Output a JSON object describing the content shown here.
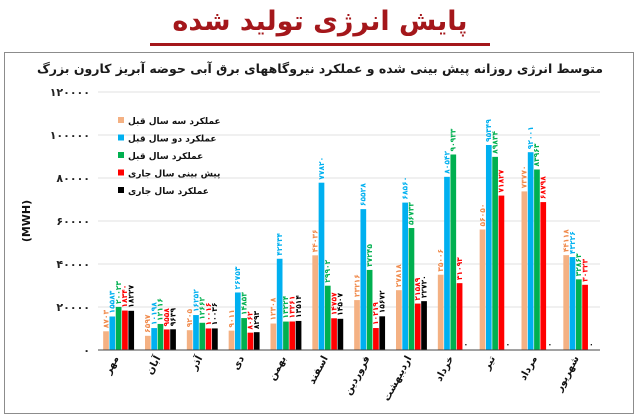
{
  "header": {
    "title": "پایش انرژی تولید شده"
  },
  "chart_data": {
    "type": "bar",
    "title": "متوسط انرژی روزانه پیش بینی شده و عملکرد نیروگاههای برق آبی حوضه آبریز کارون بزرگ",
    "ylabel": "(MWH)",
    "xlabel": "",
    "ylim": [
      0,
      120000
    ],
    "yticks": [
      0,
      20000,
      40000,
      60000,
      80000,
      100000,
      120000
    ],
    "ytick_labels": [
      "۰",
      "۲۰۰۰۰",
      "۴۰۰۰۰",
      "۶۰۰۰۰",
      "۸۰۰۰۰",
      "۱۰۰۰۰۰",
      "۱۲۰۰۰۰"
    ],
    "grid": true,
    "legend_position": "top-left",
    "categories": [
      "مهر",
      "آبان",
      "آذر",
      "دی",
      "بهمن",
      "اسفند",
      "فروردین",
      "اردیبهشت",
      "خرداد",
      "تیر",
      "مرداد",
      "شهریور"
    ],
    "series": [
      {
        "name": "عملکرد سه سال قبل",
        "color": "#f4b183",
        "values": [
          8703,
          6597,
          9205,
          9011,
          12308,
          44036,
          23216,
          27818,
          35006,
          56050,
          73770,
          44118
        ],
        "labels": [
          "۸۷۰۳",
          "۶۵۹۷",
          "۹۲۰۵",
          "۹۰۱۱",
          "۱۲۳۰۸",
          "۴۴۰۳۶",
          "۲۳۲۱۶",
          "۲۷۸۱۸",
          "۳۵۰۰۶",
          "۵۶۰۵۰",
          "۷۳۷۷۰",
          "۴۴۱۱۸"
        ]
      },
      {
        "name": "عملکرد دو سال قبل",
        "color": "#00b0f0",
        "values": [
          15583,
          10198,
          16252,
          26753,
          42434,
          77820,
          65528,
          68560,
          80542,
          95349,
          92001,
          43226
        ],
        "labels": [
          "۱۵۵۸۳",
          "۱۰۱۹۸",
          "۱۶۲۵۲",
          "۲۶۷۵۳",
          "۴۲۴۳۴",
          "۷۷۸۲۰",
          "۶۵۵۲۸",
          "۶۸۵۶۰",
          "۸۰۵۴۲",
          "۹۵۳۴۹",
          "۹۲۰۰۱",
          "۴۳۲۲۶"
        ]
      },
      {
        "name": "عملکرد سال قبل",
        "color": "#00b050",
        "values": [
          20023,
          12116,
          12662,
          14853,
          13224,
          29902,
          37245,
          56733,
          90933,
          89834,
          83963,
          32863
        ],
        "labels": [
          "۲۰۰۲۳",
          "۱۲۱۱۶",
          "۱۲۶۶۲",
          "۱۴۸۵۳",
          "۱۳۲۲۴",
          "۲۹۹۰۲",
          "۳۷۲۴۵",
          "۵۶۷۳۳",
          "۹۰۹۳۳",
          "۸۹۸۳۴",
          "۸۳۹۶۳",
          "۳۲۸۶۳"
        ]
      },
      {
        "name": "پیش بینی سال جاری",
        "color": "#ff0000",
        "values": [
          18340,
          9558,
          10016,
          8062,
          13261,
          14757,
          10219,
          21589,
          31093,
          71827,
          68798,
          30323
        ],
        "labels": [
          "۱۸۳۴۰",
          "۹۵۵۸",
          "۱۰۰۱۶",
          "۸۰۶۲",
          "۱۳۲۶۱",
          "۱۴۷۵۷",
          "۱۰۲۱۹",
          "۲۱۵۸۹",
          "۳۱۰۹۳",
          "۷۱۸۲۷",
          "۶۸۷۹۸",
          "۳۰۳۲۳"
        ]
      },
      {
        "name": "عملکرد سال جاری",
        "color": "#000000",
        "values": [
          18227,
          9639,
          10036,
          8293,
          13514,
          14507,
          15672,
          22720,
          0,
          0,
          0,
          0
        ],
        "labels": [
          "۱۸۲۲۷",
          "۹۶۳۹",
          "۱۰۰۳۶",
          "۸۲۹۳",
          "۱۳۵۱۴",
          "۱۴۵۰۷",
          "۱۵۶۷۲",
          "۲۲۷۲۰",
          "۰",
          "۰",
          "۰",
          "۰"
        ]
      }
    ]
  }
}
